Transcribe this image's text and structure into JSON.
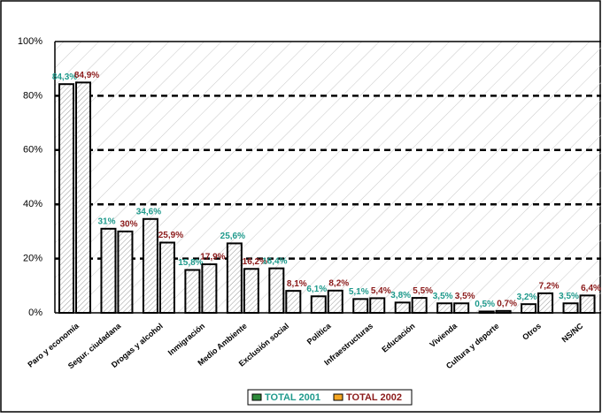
{
  "chart_data": {
    "type": "bar",
    "categories": [
      "Paro y economía",
      "Segur. ciudadana",
      "Drogas y alcohol",
      "Inmigración",
      "Medio Ambiente",
      "Exclusión social",
      "Política",
      "Infraestructuras",
      "Educación",
      "Vivienda",
      "Cultura y deporte",
      "Otros",
      "NS/NC"
    ],
    "series": [
      {
        "name": "TOTAL 2001",
        "color": "#2e8b3a",
        "label_color": "#1f9a8c",
        "values": [
          84.3,
          31,
          34.6,
          15.8,
          25.6,
          16.4,
          6.1,
          5.1,
          3.8,
          3.5,
          0.5,
          3.2,
          3.5
        ],
        "value_labels": [
          "84,3%",
          "31%",
          "34,6%",
          "15,8%",
          "25,6%",
          "16,4%",
          "6,1%",
          "5,1%",
          "3,8%",
          "3,5%",
          "0,5%",
          "3,2%",
          "3,5%"
        ]
      },
      {
        "name": "TOTAL 2002",
        "color": "#f5a623",
        "label_color": "#8b1a1a",
        "values": [
          84.9,
          30,
          25.9,
          17.9,
          16.2,
          8.1,
          8.2,
          5.4,
          5.5,
          3.5,
          0.7,
          7.2,
          6.4
        ],
        "value_labels": [
          "84,9%",
          "30%",
          "25,9%",
          "17,9%",
          "16,2%",
          "8,1%",
          "8,2%",
          "5,4%",
          "5,5%",
          "3,5%",
          "0,7%",
          "7,2%",
          "6,4%"
        ]
      }
    ],
    "ylim": [
      0,
      100
    ],
    "yticks": [
      {
        "value": 0,
        "label": "0%"
      },
      {
        "value": 20,
        "label": "20%"
      },
      {
        "value": 40,
        "label": "40%"
      },
      {
        "value": 60,
        "label": "60%"
      },
      {
        "value": 80,
        "label": "80%"
      },
      {
        "value": 100,
        "label": "100%"
      }
    ],
    "grid": true,
    "legend": "bottom"
  }
}
